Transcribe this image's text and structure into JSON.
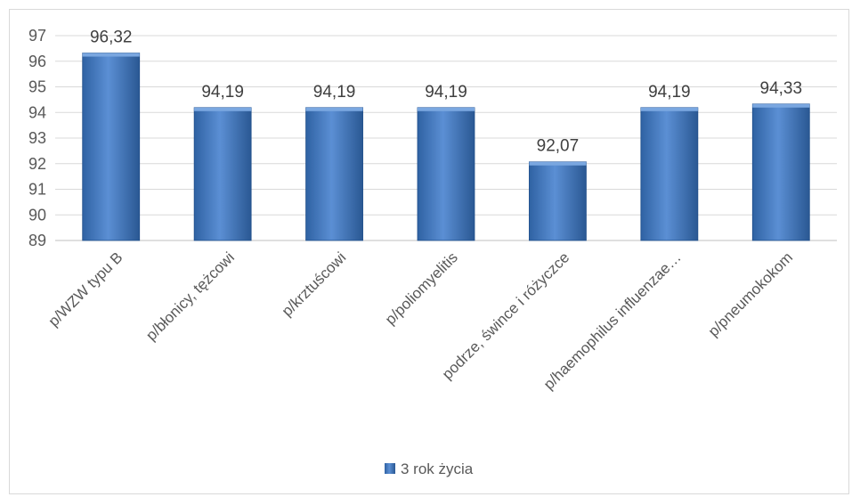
{
  "chart_data": {
    "type": "bar",
    "categories": [
      "p/WZW typu B",
      "p/błonicy, tężcowi",
      "p/krztuścowi",
      "p/poliomyelitis",
      "podrze, śwince i różyczce",
      "p/haemophilus influenzae…",
      "p/pneumokokom"
    ],
    "series": [
      {
        "name": "3 rok życia",
        "values": [
          96.32,
          94.19,
          94.19,
          94.19,
          92.07,
          94.19,
          94.33
        ],
        "data_labels": [
          "96,32",
          "94,19",
          "94,19",
          "94,19",
          "92,07",
          "94,19",
          "94,33"
        ]
      }
    ],
    "ylim": [
      89,
      97
    ],
    "yticks": [
      89,
      90,
      91,
      92,
      93,
      94,
      95,
      96,
      97
    ],
    "grid": true,
    "legend": "bottom",
    "colors": {
      "bar": "#4a7ebb",
      "bar_dark": "#2c5f9e",
      "grid": "#d9d9d9",
      "text": "#595959"
    }
  }
}
